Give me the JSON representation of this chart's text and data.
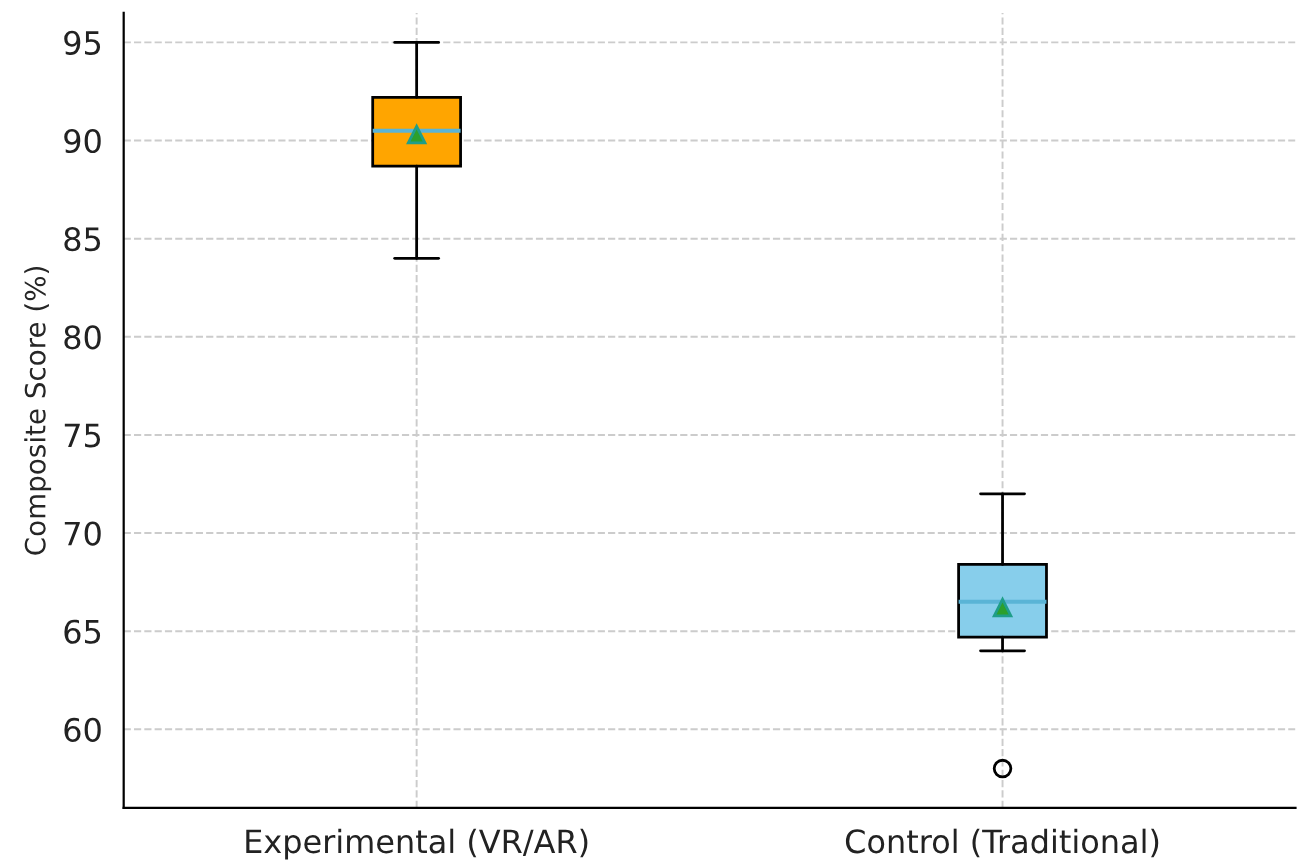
{
  "chart_data": {
    "type": "box",
    "ylabel": "Composite Score (%)",
    "categories": [
      "Experimental (VR/AR)",
      "Control (Traditional)"
    ],
    "colors": [
      "#ffa500",
      "#87ceeb"
    ],
    "boxes": [
      {
        "low": 84,
        "q1": 88.7,
        "median": 90.5,
        "q3": 92.2,
        "high": 95,
        "mean": 90.3
      },
      {
        "low": 64,
        "q1": 64.7,
        "median": 66.5,
        "q3": 68.4,
        "high": 72,
        "mean": 66.2,
        "outliers": [
          58
        ]
      }
    ],
    "ylim": [
      56,
      96.5
    ],
    "yticks": [
      60,
      65,
      70,
      75,
      80,
      85,
      90,
      95
    ],
    "grid": true
  }
}
